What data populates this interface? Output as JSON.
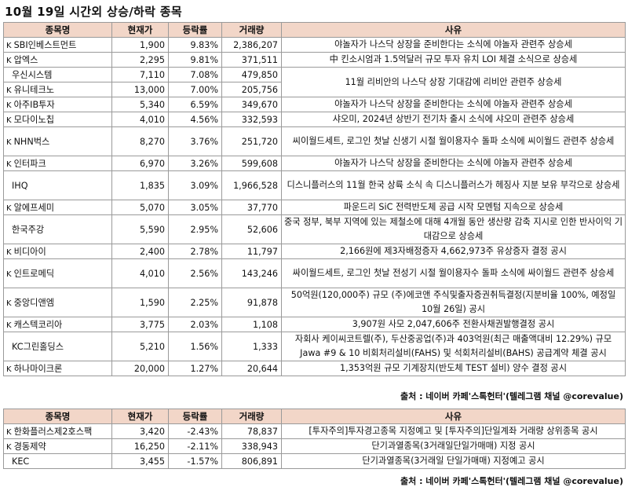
{
  "title": "10월 19일  시간외 상승/하락 종목",
  "headers": [
    "종목명",
    "현재가",
    "등락률",
    "거래량",
    "사유"
  ],
  "rise": [
    {
      "mark": "K",
      "name": "SBI인베스트먼트",
      "price": "1,900",
      "change": "9.83%",
      "volume": "2,386,207",
      "reason": "야놀자가 나스닥 상장을 준비한다는 소식에 야놀자 관련주 상승세"
    },
    {
      "mark": "K",
      "name": "압엑스",
      "price": "2,295",
      "change": "9.81%",
      "volume": "371,511",
      "reason": "中 킨소시엄과 1.5억달러 규모 투자 유치 LOI 체결 소식으로 상승세"
    },
    {
      "mark": "",
      "name": "우신시스템",
      "price": "7,110",
      "change": "7.08%",
      "volume": "479,850",
      "reason": "11월 리비안의 나스닥 상장 기대감에 리비안 관련주 상승세"
    },
    {
      "mark": "K",
      "name": "유니테크노",
      "price": "13,000",
      "change": "7.00%",
      "volume": "205,756",
      "reason": ""
    },
    {
      "mark": "K",
      "name": "아주IB투자",
      "price": "5,340",
      "change": "6.59%",
      "volume": "349,670",
      "reason": "야놀자가 나스닥 상장을 준비한다는 소식에 야놀자 관련주 상승세"
    },
    {
      "mark": "K",
      "name": "모다이노칩",
      "price": "4,010",
      "change": "4.56%",
      "volume": "332,593",
      "reason": "샤오미, 2024년 상반기 전기차 출시 소식에 샤오미 관련주 상승세"
    },
    {
      "mark": "K",
      "name": "NHN벅스",
      "price": "8,270",
      "change": "3.76%",
      "volume": "251,720",
      "reason": "씨이월드세트, 로그인 첫날 신생기 시절 월이용자수 돌파 소식에 씨이월드 관련주 상승세"
    },
    {
      "mark": "K",
      "name": "인터파크",
      "price": "6,970",
      "change": "3.26%",
      "volume": "599,608",
      "reason": "야놀자가 나스닥 상장을 준비한다는 소식에 야놀자 관련주 상승세"
    },
    {
      "mark": "",
      "name": "IHQ",
      "price": "1,835",
      "change": "3.09%",
      "volume": "1,966,528",
      "reason": "디스니플러스의 11월 한국 상륙 소식 속 디스니플러스가 헤징사 지분 보유 부각으로 상승세"
    },
    {
      "mark": "K",
      "name": "알에프세미",
      "price": "5,070",
      "change": "3.05%",
      "volume": "37,770",
      "reason": "파운드리 SiC 전력반도체 공급 시작 모멘텀 지속으로 상승세"
    },
    {
      "mark": "",
      "name": "한국주강",
      "price": "5,590",
      "change": "2.95%",
      "volume": "52,606",
      "reason": "중국 정부, 북부 지역에 있는 제철소에 대해 4개월 동안 생산량 감축 지시로 인한 반사이익 기대감으로 상승세"
    },
    {
      "mark": "K",
      "name": "비디아이",
      "price": "2,400",
      "change": "2.78%",
      "volume": "11,797",
      "reason": "2,166원에 제3자배정증자 4,662,973주 유상증자 결정 공시"
    },
    {
      "mark": "K",
      "name": "인트로메딕",
      "price": "4,010",
      "change": "2.56%",
      "volume": "143,246",
      "reason": "싸이월드세트, 로그인 첫날 전성기 시절 월이용자수 돌파 소식에 싸이월드 관련주 상승세"
    },
    {
      "mark": "K",
      "name": "중앙디앤엠",
      "price": "1,590",
      "change": "2.25%",
      "volume": "91,878",
      "reason": "50억원(120,000주) 규모 (주)에코앤 주식및출자증권취득결정(지분비율 100%, 예정일 10월 26일)  공시"
    },
    {
      "mark": "K",
      "name": "캐스텍코리아",
      "price": "3,775",
      "change": "2.03%",
      "volume": "1,108",
      "reason": "3,907원 사모 2,047,606주 전환사채권발행결정 공시"
    },
    {
      "mark": "",
      "name": "KC그린홀딩스",
      "price": "5,210",
      "change": "1.56%",
      "volume": "1,333",
      "reason": "자회사 케이씨코트렐(주), 두산중공업(주)과 403억원(최근 매출액대비 12.29%) 규모 Jawa #9 & 10 비회처리설비(FAHS) 및 석회처리설비(BAHS) 공급계약 체결 공시"
    },
    {
      "mark": "K",
      "name": "하나마이크론",
      "price": "20,000",
      "change": "1.27%",
      "volume": "20,644",
      "reason": "1,353억원 규모 기계장치(반도체 TEST 설비) 양수 결정 공시"
    }
  ],
  "fall": [
    {
      "mark": "K",
      "name": "한화플러스제2호스팩",
      "price": "3,420",
      "change": "-2.43%",
      "volume": "78,837",
      "reason": "[투자주의]투자경고종목 지정예고 및 [투자주의]단일계좌 거래량 상위종목 공시"
    },
    {
      "mark": "K",
      "name": "경동제약",
      "price": "16,250",
      "change": "-2.11%",
      "volume": "338,943",
      "reason": "단기과열종목(3거래일단일가매매) 지정 공시"
    },
    {
      "mark": "",
      "name": "KEC",
      "price": "3,455",
      "change": "-1.57%",
      "volume": "806,891",
      "reason": "단기과열종목(3거래일 단일가매매) 지정예고 공시"
    }
  ],
  "source": "출처 : 네이버 카페'스톡헌터'(텔레그램 채널 @corevalue)"
}
